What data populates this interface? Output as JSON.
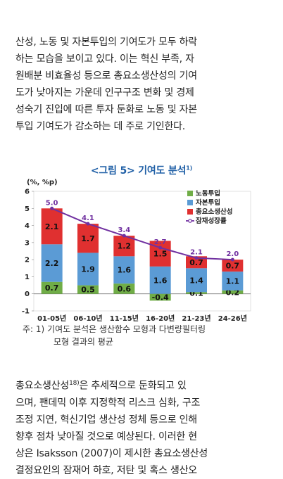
{
  "paragraph_1": [
    "산성, 노동 및 자본투입의 기여도가 모두 하락",
    "하는 모습을 보이고 있다. 이는 혁신 부족, 자",
    "원배분 비효율성 등으로 총요소생산성의 기여",
    "도가 낮아지는 가운데 인구구조 변화 및 경제",
    "성숙기 진입에 따른 투자 둔화로 노동 및 자본",
    "투입 기여도가 감소하는 데 주로 기인한다."
  ],
  "figure": {
    "title": "<그림 5> 기여도 분석",
    "title_sup": "1)",
    "note_line1": "주: 1) 기여도 분석은 생산함수 모형과 다변량필터링",
    "note_line2": "모형 결과의 평균"
  },
  "chart_data": {
    "type": "bar",
    "stacked": true,
    "unit_label": "(%, %p)",
    "categories": [
      "01-05년",
      "06-10년",
      "11-15년",
      "16-20년",
      "21-23년",
      "24-26년"
    ],
    "series": [
      {
        "name": "노동투입",
        "color": "#70ad47",
        "values": [
          0.7,
          0.5,
          0.6,
          -0.4,
          0.1,
          0.2
        ]
      },
      {
        "name": "자본투입",
        "color": "#5b9bd5",
        "values": [
          2.2,
          1.9,
          1.6,
          1.6,
          1.4,
          1.1
        ]
      },
      {
        "name": "총요소생산성",
        "color": "#e03030",
        "values": [
          2.1,
          1.7,
          1.2,
          1.5,
          0.7,
          0.7
        ]
      }
    ],
    "line": {
      "name": "잠재성장률",
      "color": "#7030a0",
      "values": [
        5.0,
        4.1,
        3.4,
        2.7,
        2.1,
        2.0
      ]
    },
    "ylim": [
      -1,
      6
    ],
    "yticks": [
      -1,
      0,
      1,
      2,
      3,
      4,
      5,
      6
    ],
    "legend_position": "top-right"
  },
  "paragraph_2": [
    {
      "text": "총요소생산성",
      "sup": "18)",
      "rest": "은 추세적으로 둔화되고 있"
    },
    {
      "text": "으며, 팬데믹 이후 지정학적 리스크 심화, 구조"
    },
    {
      "text": "조정 지연, 혁신기업 생산성 정체 등으로 인해"
    },
    {
      "text": "향후 점차 낮아질 것으로 예상된다. 이러한 현"
    },
    {
      "text": "상은 Isaksson (2007)이 제시한 총요소생산성"
    },
    {
      "text": "결정요인의 잠재어 하호, 저탄 및 혹스 생산오"
    }
  ]
}
